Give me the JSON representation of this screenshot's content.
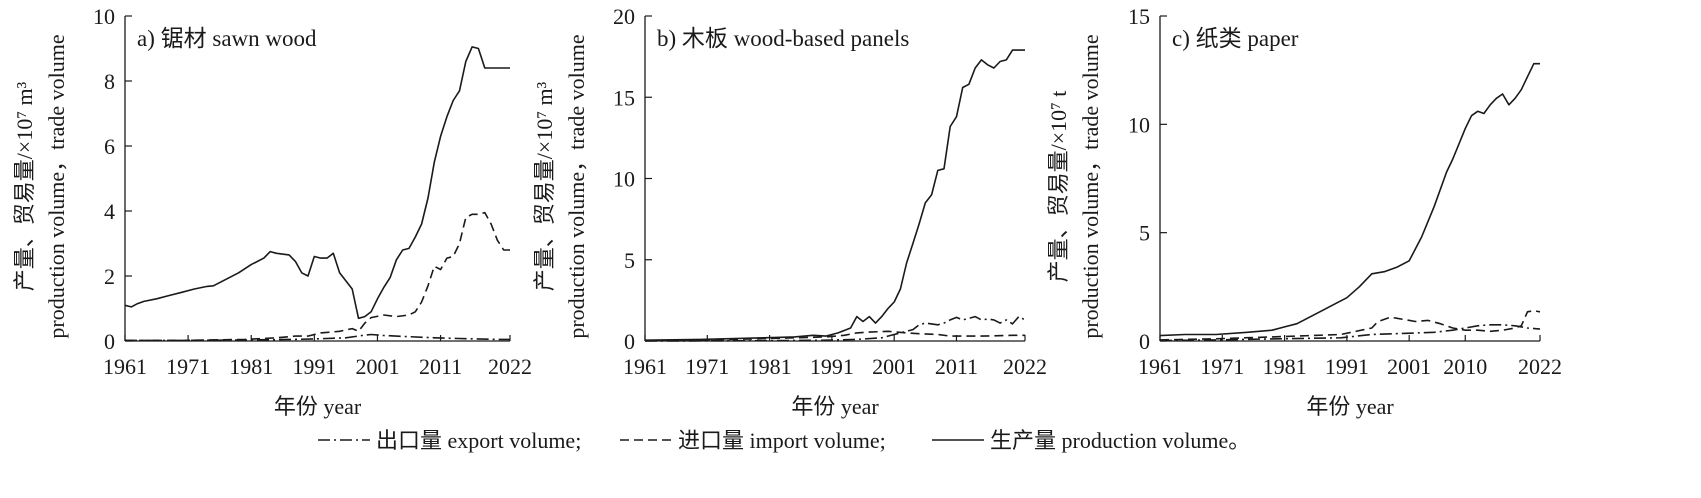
{
  "chart_data": [
    {
      "type": "line",
      "panel_label": "a) 锯材 sawn wood",
      "xlabel": "年份 year",
      "ylabel_line1": "产量、贸易量/×10⁷ m³",
      "ylabel_line2": "production volume，trade volume",
      "xlim": [
        1961,
        2022
      ],
      "ylim": [
        0,
        10
      ],
      "xticks": [
        1961,
        1971,
        1981,
        1991,
        2001,
        2011,
        2022
      ],
      "yticks": [
        0,
        2,
        4,
        6,
        8,
        10
      ],
      "series": [
        {
          "name": "生产量 production volume",
          "style": "solid",
          "x": [
            1961,
            1962,
            1963,
            1964,
            1966,
            1968,
            1970,
            1972,
            1974,
            1975,
            1977,
            1979,
            1981,
            1983,
            1984,
            1985,
            1987,
            1988,
            1989,
            1990,
            1991,
            1992,
            1993,
            1994,
            1995,
            1996,
            1997,
            1998,
            1999,
            2000,
            2001,
            2002,
            2003,
            2004,
            2005,
            2006,
            2007,
            2008,
            2009,
            2010,
            2011,
            2012,
            2013,
            2014,
            2015,
            2016,
            2017,
            2018,
            2019,
            2020,
            2021,
            2022
          ],
          "y": [
            1.1,
            1.05,
            1.15,
            1.22,
            1.3,
            1.4,
            1.5,
            1.6,
            1.68,
            1.7,
            1.9,
            2.1,
            2.35,
            2.55,
            2.75,
            2.7,
            2.65,
            2.45,
            2.1,
            2.0,
            2.6,
            2.55,
            2.55,
            2.7,
            2.1,
            1.85,
            1.6,
            0.7,
            0.75,
            0.9,
            1.3,
            1.65,
            1.95,
            2.5,
            2.8,
            2.85,
            3.2,
            3.6,
            4.4,
            5.5,
            6.3,
            6.9,
            7.4,
            7.7,
            8.6,
            9.05,
            9.0,
            8.4,
            8.4,
            8.4,
            8.4,
            8.4
          ]
        },
        {
          "name": "进口量 import volume",
          "style": "dashed",
          "x": [
            1961,
            1970,
            1980,
            1985,
            1988,
            1990,
            1992,
            1995,
            1997,
            1998,
            1999,
            2000,
            2002,
            2004,
            2006,
            2007,
            2008,
            2009,
            2010,
            2011,
            2012,
            2013,
            2014,
            2015,
            2016,
            2017,
            2018,
            2019,
            2020,
            2021,
            2022
          ],
          "y": [
            0.02,
            0.02,
            0.05,
            0.1,
            0.15,
            0.15,
            0.25,
            0.3,
            0.38,
            0.3,
            0.55,
            0.72,
            0.8,
            0.75,
            0.8,
            0.9,
            1.2,
            1.7,
            2.3,
            2.2,
            2.55,
            2.6,
            3.0,
            3.8,
            3.9,
            3.9,
            3.95,
            3.6,
            3.1,
            2.8,
            2.8
          ]
        },
        {
          "name": "出口量 export volume",
          "style": "dash-dot",
          "x": [
            1961,
            1970,
            1980,
            1988,
            1992,
            1996,
            1999,
            2000,
            2002,
            2005,
            2010,
            2015,
            2020,
            2022
          ],
          "y": [
            0.02,
            0.02,
            0.03,
            0.05,
            0.07,
            0.1,
            0.18,
            0.2,
            0.17,
            0.14,
            0.1,
            0.07,
            0.05,
            0.05
          ]
        }
      ]
    },
    {
      "type": "line",
      "panel_label": "b) 木板 wood-based panels",
      "xlabel": "年份 year",
      "ylabel_line1": "产量、贸易量/×10⁷ m³",
      "ylabel_line2": "production volume，trade volume",
      "xlim": [
        1961,
        2022
      ],
      "ylim": [
        0,
        20
      ],
      "xticks": [
        1961,
        1971,
        1981,
        1991,
        2001,
        2011,
        2022
      ],
      "yticks": [
        0,
        5,
        10,
        15,
        20
      ],
      "series": [
        {
          "name": "生产量 production volume",
          "style": "solid",
          "x": [
            1961,
            1970,
            1980,
            1985,
            1988,
            1990,
            1992,
            1994,
            1995,
            1996,
            1997,
            1998,
            1999,
            2000,
            2001,
            2002,
            2003,
            2004,
            2005,
            2006,
            2007,
            2008,
            2009,
            2010,
            2011,
            2012,
            2013,
            2014,
            2015,
            2016,
            2017,
            2018,
            2019,
            2020,
            2021,
            2022
          ],
          "y": [
            0.05,
            0.1,
            0.2,
            0.25,
            0.35,
            0.3,
            0.5,
            0.8,
            1.5,
            1.2,
            1.5,
            1.1,
            1.5,
            2.0,
            2.4,
            3.2,
            4.8,
            6.0,
            7.2,
            8.5,
            9.0,
            10.5,
            10.6,
            13.2,
            13.8,
            15.6,
            15.8,
            16.8,
            17.3,
            17.0,
            16.8,
            17.2,
            17.3,
            17.9,
            17.9,
            17.9
          ]
        },
        {
          "name": "进口量 import volume",
          "style": "dashed",
          "x": [
            1961,
            1970,
            1980,
            1985,
            1990,
            1993,
            1995,
            1997,
            2000,
            2003,
            2005,
            2008,
            2010,
            2015,
            2020,
            2022
          ],
          "y": [
            0.02,
            0.05,
            0.15,
            0.2,
            0.25,
            0.35,
            0.5,
            0.55,
            0.6,
            0.5,
            0.45,
            0.4,
            0.3,
            0.3,
            0.35,
            0.35
          ]
        },
        {
          "name": "出口量 export volume",
          "style": "dash-dot",
          "x": [
            1961,
            1980,
            1990,
            1995,
            1999,
            2000,
            2002,
            2004,
            2005,
            2006,
            2008,
            2009,
            2010,
            2011,
            2012,
            2013,
            2014,
            2015,
            2016,
            2017,
            2018,
            2019,
            2020,
            2021,
            2022
          ],
          "y": [
            0.0,
            0.02,
            0.05,
            0.1,
            0.2,
            0.3,
            0.5,
            0.7,
            1.0,
            1.1,
            1.0,
            1.1,
            1.3,
            1.45,
            1.3,
            1.4,
            1.5,
            1.3,
            1.35,
            1.3,
            1.1,
            1.3,
            1.05,
            1.5,
            1.3
          ]
        }
      ]
    },
    {
      "type": "line",
      "panel_label": "c) 纸类 paper",
      "xlabel": "年份 year",
      "ylabel_line1": "产量、贸易量/×10⁷ t",
      "ylabel_line2": "production volume，trade volume",
      "xlim": [
        1961,
        2022
      ],
      "ylim": [
        0,
        15
      ],
      "xticks": [
        1961,
        1971,
        1981,
        1991,
        2001,
        2010,
        2022
      ],
      "yticks": [
        0,
        5,
        10,
        15
      ],
      "series": [
        {
          "name": "生产量 production volume",
          "style": "solid",
          "x": [
            1961,
            1965,
            1970,
            1975,
            1979,
            1981,
            1983,
            1985,
            1987,
            1989,
            1991,
            1993,
            1995,
            1997,
            1999,
            2001,
            2003,
            2005,
            2007,
            2008,
            2010,
            2011,
            2012,
            2013,
            2014,
            2015,
            2016,
            2017,
            2018,
            2019,
            2020,
            2021,
            2022
          ],
          "y": [
            0.25,
            0.3,
            0.3,
            0.4,
            0.5,
            0.65,
            0.8,
            1.1,
            1.4,
            1.7,
            2.0,
            2.5,
            3.1,
            3.2,
            3.4,
            3.7,
            4.8,
            6.2,
            7.8,
            8.4,
            9.8,
            10.4,
            10.6,
            10.5,
            10.9,
            11.2,
            11.4,
            10.9,
            11.2,
            11.6,
            12.2,
            12.8,
            12.8
          ]
        },
        {
          "name": "进口量 import volume",
          "style": "dashed",
          "x": [
            1961,
            1970,
            1980,
            1990,
            1995,
            1996,
            1998,
            2000,
            2002,
            2004,
            2006,
            2008,
            2010,
            2012,
            2014,
            2016,
            2018,
            2019,
            2020,
            2021,
            2022
          ],
          "y": [
            0.05,
            0.1,
            0.2,
            0.3,
            0.6,
            0.9,
            1.1,
            1.0,
            0.9,
            0.95,
            0.8,
            0.6,
            0.5,
            0.5,
            0.45,
            0.5,
            0.6,
            0.7,
            1.35,
            1.4,
            1.35
          ]
        },
        {
          "name": "出口量 export volume",
          "style": "dash-dot",
          "x": [
            1961,
            1970,
            1980,
            1990,
            1995,
            2000,
            2005,
            2008,
            2010,
            2012,
            2014,
            2016,
            2018,
            2020,
            2022
          ],
          "y": [
            0.02,
            0.05,
            0.1,
            0.15,
            0.3,
            0.35,
            0.4,
            0.5,
            0.6,
            0.7,
            0.75,
            0.75,
            0.7,
            0.6,
            0.55
          ]
        }
      ]
    }
  ],
  "legend": [
    {
      "style": "dash-dot",
      "label": "出口量 export volume;"
    },
    {
      "style": "dashed",
      "label": "进口量 import volume;"
    },
    {
      "style": "solid",
      "label": "生产量 production volume。"
    }
  ],
  "colors": {
    "line": "#1a1a1a",
    "background": "#ffffff"
  }
}
